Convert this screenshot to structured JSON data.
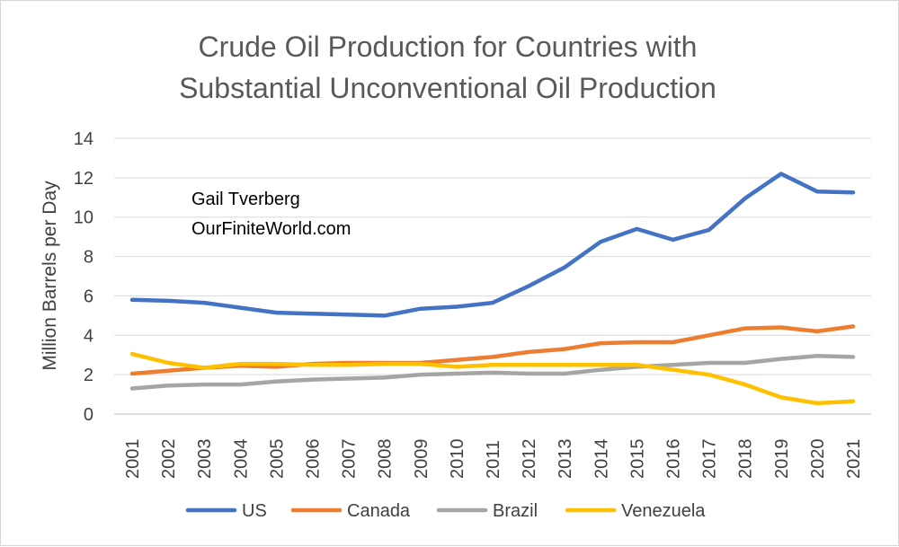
{
  "chart_data": {
    "type": "line",
    "title": "Crude Oil Production for Countries with Substantial Unconventional Oil Production",
    "title_lines": [
      "Crude Oil Production for Countries with",
      "Substantial Unconventional Oil Production"
    ],
    "xlabel": "",
    "ylabel": "Million Barrels per Day",
    "ylim": [
      0,
      14
    ],
    "yticks": [
      0,
      2,
      4,
      6,
      8,
      10,
      12,
      14
    ],
    "grid": true,
    "legend_position": "bottom",
    "annotations": [
      "Gail Tverberg",
      "OurFiniteWorld.com"
    ],
    "categories": [
      "2001",
      "2002",
      "2003",
      "2004",
      "2005",
      "2006",
      "2007",
      "2008",
      "2009",
      "2010",
      "2011",
      "2012",
      "2013",
      "2014",
      "2015",
      "2016",
      "2017",
      "2018",
      "2019",
      "2020",
      "2021"
    ],
    "series": [
      {
        "name": "US",
        "color": "#4472C4",
        "values": [
          5.8,
          5.75,
          5.65,
          5.4,
          5.15,
          5.1,
          5.05,
          5.0,
          5.35,
          5.45,
          5.65,
          6.5,
          7.45,
          8.75,
          9.4,
          8.85,
          9.35,
          10.95,
          12.2,
          11.3,
          11.25
        ]
      },
      {
        "name": "Canada",
        "color": "#ED7D31",
        "values": [
          2.05,
          2.2,
          2.35,
          2.45,
          2.4,
          2.55,
          2.6,
          2.6,
          2.6,
          2.75,
          2.9,
          3.15,
          3.3,
          3.6,
          3.65,
          3.65,
          4.0,
          4.35,
          4.4,
          4.2,
          4.45
        ]
      },
      {
        "name": "Brazil",
        "color": "#A5A5A5",
        "values": [
          1.3,
          1.45,
          1.5,
          1.5,
          1.65,
          1.75,
          1.8,
          1.85,
          2.0,
          2.05,
          2.1,
          2.05,
          2.05,
          2.25,
          2.4,
          2.5,
          2.6,
          2.6,
          2.8,
          2.95,
          2.9
        ]
      },
      {
        "name": "Venezuela",
        "color": "#FFC000",
        "values": [
          3.05,
          2.6,
          2.35,
          2.55,
          2.55,
          2.5,
          2.5,
          2.55,
          2.55,
          2.4,
          2.5,
          2.5,
          2.5,
          2.5,
          2.5,
          2.25,
          2.0,
          1.5,
          0.85,
          0.55,
          0.65
        ]
      }
    ]
  }
}
